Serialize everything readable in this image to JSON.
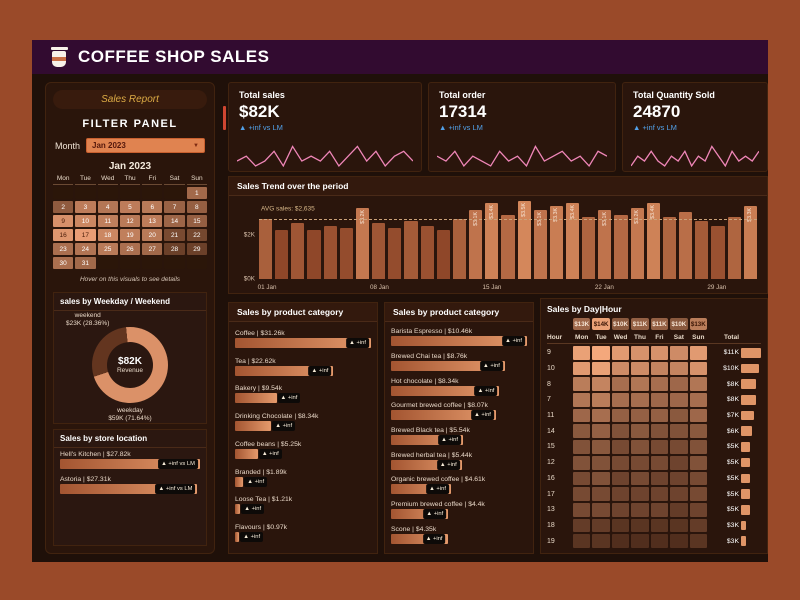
{
  "header": {
    "title": "COFFEE SHOP SALES",
    "icon": "coffee-cup-icon",
    "bg": "#320b30"
  },
  "colors": {
    "frame": "#9a4a29",
    "dashboard_bg": "#1f1009",
    "panel_bg": "#2a150c",
    "accent": "#e09567",
    "delta_blue": "#52a0e8",
    "gold": "#dcab45",
    "sparkline_pink": "#ef86b8"
  },
  "sidebar": {
    "report_label": "Sales Report",
    "filter_title": "FILTER PANEL",
    "month_label": "Month",
    "month_value": "Jan 2023",
    "hint": "Hover on this visuals to see details",
    "calendar": {
      "title": "Jan 2023",
      "day_headers": [
        "Mon",
        "Tue",
        "Wed",
        "Thu",
        "Fri",
        "Sat",
        "Sun"
      ],
      "heat_low": "#40200f",
      "heat_high": "#f2a47a",
      "cells": [
        {
          "d": "",
          "v": 0
        },
        {
          "d": "",
          "v": 0
        },
        {
          "d": "",
          "v": 0
        },
        {
          "d": "",
          "v": 0
        },
        {
          "d": "",
          "v": 0
        },
        {
          "d": "",
          "v": 0
        },
        {
          "d": "1",
          "v": 0.55
        },
        {
          "d": "2",
          "v": 0.45
        },
        {
          "d": "3",
          "v": 0.7
        },
        {
          "d": "4",
          "v": 0.65
        },
        {
          "d": "5",
          "v": 0.7
        },
        {
          "d": "6",
          "v": 0.68
        },
        {
          "d": "7",
          "v": 0.5
        },
        {
          "d": "8",
          "v": 0.48
        },
        {
          "d": "9",
          "v": 0.85
        },
        {
          "d": "10",
          "v": 0.78
        },
        {
          "d": "11",
          "v": 0.72
        },
        {
          "d": "12",
          "v": 0.68
        },
        {
          "d": "13",
          "v": 0.7
        },
        {
          "d": "14",
          "v": 0.52
        },
        {
          "d": "15",
          "v": 0.48
        },
        {
          "d": "16",
          "v": 0.9
        },
        {
          "d": "17",
          "v": 0.95
        },
        {
          "d": "18",
          "v": 0.78
        },
        {
          "d": "19",
          "v": 0.72
        },
        {
          "d": "20",
          "v": 0.68
        },
        {
          "d": "21",
          "v": 0.32
        },
        {
          "d": "22",
          "v": 0.3
        },
        {
          "d": "23",
          "v": 0.6
        },
        {
          "d": "24",
          "v": 0.64
        },
        {
          "d": "25",
          "v": 0.68
        },
        {
          "d": "26",
          "v": 0.6
        },
        {
          "d": "27",
          "v": 0.55
        },
        {
          "d": "28",
          "v": 0.24
        },
        {
          "d": "29",
          "v": 0.24
        },
        {
          "d": "30",
          "v": 0.6
        },
        {
          "d": "31",
          "v": 0.55
        },
        {
          "d": "",
          "v": 0
        },
        {
          "d": "",
          "v": 0
        },
        {
          "d": "",
          "v": 0
        },
        {
          "d": "",
          "v": 0
        },
        {
          "d": "",
          "v": 0
        }
      ]
    }
  },
  "kpis": [
    {
      "title": "Total sales",
      "value": "$82K",
      "delta": "▲ +inf vs LM"
    },
    {
      "title": "Total order",
      "value": "17314",
      "delta": "▲ +inf vs LM"
    },
    {
      "title": "Total Quantity Sold",
      "value": "24870",
      "delta": "▲ +inf vs LM"
    }
  ],
  "chart_data": [
    {
      "id": "kpi-sparklines",
      "type": "line",
      "color": "#ef86b8",
      "series": [
        {
          "name": "Total sales",
          "values": [
            4,
            5,
            3,
            4,
            6,
            3,
            7,
            4,
            5,
            4,
            6,
            3,
            5,
            7,
            4,
            6,
            3,
            5,
            6,
            4
          ]
        },
        {
          "name": "Total order",
          "values": [
            5,
            4,
            6,
            3,
            5,
            4,
            3,
            6,
            4,
            5,
            3,
            7,
            4,
            5,
            6,
            4,
            5,
            3,
            6,
            5
          ]
        },
        {
          "name": "Total Quantity Sold",
          "values": [
            3,
            5,
            4,
            6,
            4,
            3,
            5,
            4,
            6,
            3,
            5,
            4,
            7,
            5,
            3,
            6,
            4,
            5,
            4,
            6
          ]
        }
      ]
    },
    {
      "id": "sales-trend",
      "type": "bar",
      "title": "Sales Trend over the period",
      "avg_label": "AVG sales: $2,635",
      "avg_value": 2.635,
      "ymax": 3.6,
      "unit": "$K",
      "yticks": [
        {
          "label": "$2K",
          "value": 2
        },
        {
          "label": "$0K",
          "value": 0
        }
      ],
      "xticks": [
        {
          "label": "01 Jan",
          "index": 0
        },
        {
          "label": "08 Jan",
          "index": 7
        },
        {
          "label": "15 Jan",
          "index": 14
        },
        {
          "label": "22 Jan",
          "index": 21
        },
        {
          "label": "29 Jan",
          "index": 28
        }
      ],
      "bars": [
        {
          "v": 2.7
        },
        {
          "v": 2.2
        },
        {
          "v": 2.5
        },
        {
          "v": 2.2
        },
        {
          "v": 2.4
        },
        {
          "v": 2.3
        },
        {
          "v": 3.2,
          "label": "$3.2K"
        },
        {
          "v": 2.5
        },
        {
          "v": 2.3
        },
        {
          "v": 2.6
        },
        {
          "v": 2.4
        },
        {
          "v": 2.2
        },
        {
          "v": 2.7
        },
        {
          "v": 3.1,
          "label": "$3.1K"
        },
        {
          "v": 3.4,
          "label": "$3.4K"
        },
        {
          "v": 2.9
        },
        {
          "v": 3.5,
          "label": "$3.5K"
        },
        {
          "v": 3.1,
          "label": "$3.1K"
        },
        {
          "v": 3.3,
          "label": "$3.3K"
        },
        {
          "v": 3.4,
          "label": "$3.4K"
        },
        {
          "v": 2.8
        },
        {
          "v": 3.1,
          "label": "$3.1K"
        },
        {
          "v": 2.9
        },
        {
          "v": 3.2,
          "label": "$3.2K"
        },
        {
          "v": 3.4,
          "label": "$3.4K"
        },
        {
          "v": 2.8
        },
        {
          "v": 3.0
        },
        {
          "v": 2.6
        },
        {
          "v": 2.4
        },
        {
          "v": 2.8
        },
        {
          "v": 3.3,
          "label": "$3.3K"
        }
      ]
    },
    {
      "id": "category",
      "type": "bar",
      "title": "Sales by product category",
      "max": 31.26,
      "items": [
        {
          "label": "Coffee | $31.26k",
          "value": 31.26,
          "badge": "▲ +inf"
        },
        {
          "label": "Tea | $22.62k",
          "value": 22.62,
          "badge": "▲ +inf"
        },
        {
          "label": "Bakery | $9.54k",
          "value": 9.54,
          "badge": "▲ +inf"
        },
        {
          "label": "Drinking Chocolate | $8.34k",
          "value": 8.34,
          "badge": "▲ +inf"
        },
        {
          "label": "Coffee beans | $5.25k",
          "value": 5.25,
          "badge": "▲ +inf"
        },
        {
          "label": "Branded | $1.89k",
          "value": 1.89,
          "badge": "▲ +inf"
        },
        {
          "label": "Loose Tea | $1.21k",
          "value": 1.21,
          "badge": "▲ +inf"
        },
        {
          "label": "Flavours | $0.97k",
          "value": 0.97,
          "badge": "▲ +inf"
        }
      ]
    },
    {
      "id": "product-type",
      "type": "bar",
      "title": "Sales by product category",
      "max": 10.46,
      "items": [
        {
          "label": "Barista Espresso | $10.46k",
          "value": 10.46,
          "badge": "▲ +inf"
        },
        {
          "label": "Brewed Chai tea | $8.76k",
          "value": 8.76,
          "badge": "▲ +inf"
        },
        {
          "label": "Hot chocolate | $8.34k",
          "value": 8.34,
          "badge": "▲ +inf"
        },
        {
          "label": "Gourmet brewed coffee | $8.07k",
          "value": 8.07,
          "badge": "▲ +inf"
        },
        {
          "label": "Brewed Black tea | $5.54k",
          "value": 5.54,
          "badge": "▲ +inf"
        },
        {
          "label": "Brewed herbal tea | $5.44k",
          "value": 5.44,
          "badge": "▲ +inf"
        },
        {
          "label": "Organic brewed coffee | $4.61k",
          "value": 4.61,
          "badge": "▲ +inf"
        },
        {
          "label": "Premium brewed coffee | $4.4k",
          "value": 4.4,
          "badge": "▲ +inf"
        },
        {
          "label": "Scone | $4.35k",
          "value": 4.35,
          "badge": "▲ +inf"
        }
      ]
    },
    {
      "id": "weekday-weekend",
      "type": "donut",
      "title": "sales by Weekday / Weekend",
      "slices": [
        {
          "name": "weekend",
          "label": "$23K (28.36%)",
          "pct": 28.36,
          "color": "#63351f"
        },
        {
          "name": "weekday",
          "label": "$59K (71.64%)",
          "pct": 71.64,
          "color": "#db9168"
        }
      ],
      "center_value": "$82K",
      "center_label": "Revenue"
    },
    {
      "id": "store-location",
      "type": "bar",
      "title": "Sales by store location",
      "max": 27.82,
      "items": [
        {
          "label": "Hell's Kitchen | $27.82k",
          "value": 27.82,
          "badge": "▲ +inf vs LM"
        },
        {
          "label": "Astoria | $27.31k",
          "value": 27.31,
          "badge": "▲ +inf vs LM"
        }
      ]
    },
    {
      "id": "day-hour",
      "type": "heatmap",
      "title": "Sales by Day|Hour",
      "heat_low": "#34180c",
      "heat_high": "#f4a87c",
      "max_total": 11,
      "columns": [
        "Hour",
        "Mon",
        "Tue",
        "Wed",
        "Thu",
        "Fri",
        "Sat",
        "Sun",
        "Total"
      ],
      "col_totals": [
        {
          "label": "$13K",
          "v": 0.55
        },
        {
          "label": "$14K",
          "v": 0.95
        },
        {
          "label": "$10K",
          "v": 0.45
        },
        {
          "label": "$11K",
          "v": 0.5
        },
        {
          "label": "$11K",
          "v": 0.5
        },
        {
          "label": "$10K",
          "v": 0.45
        },
        {
          "label": "$13K",
          "v": 0.7
        }
      ],
      "rows": [
        {
          "hour": "9",
          "total": "$11K",
          "tv": 11,
          "cells": [
            0.95,
            1.0,
            0.9,
            0.85,
            0.85,
            0.8,
            0.9
          ]
        },
        {
          "hour": "10",
          "total": "$10K",
          "tv": 10,
          "cells": [
            0.9,
            0.95,
            0.8,
            0.8,
            0.75,
            0.75,
            0.85
          ]
        },
        {
          "hour": "8",
          "total": "$8K",
          "tv": 8,
          "cells": [
            0.7,
            0.75,
            0.6,
            0.65,
            0.6,
            0.55,
            0.65
          ]
        },
        {
          "hour": "7",
          "total": "$8K",
          "tv": 8,
          "cells": [
            0.65,
            0.7,
            0.6,
            0.6,
            0.55,
            0.55,
            0.6
          ]
        },
        {
          "hour": "11",
          "total": "$7K",
          "tv": 7,
          "cells": [
            0.55,
            0.6,
            0.5,
            0.5,
            0.5,
            0.45,
            0.55
          ]
        },
        {
          "hour": "14",
          "total": "$6K",
          "tv": 6,
          "cells": [
            0.45,
            0.5,
            0.4,
            0.45,
            0.4,
            0.4,
            0.45
          ]
        },
        {
          "hour": "15",
          "total": "$5K",
          "tv": 5,
          "cells": [
            0.4,
            0.45,
            0.35,
            0.4,
            0.35,
            0.35,
            0.4
          ]
        },
        {
          "hour": "12",
          "total": "$5K",
          "tv": 5,
          "cells": [
            0.4,
            0.4,
            0.35,
            0.35,
            0.35,
            0.3,
            0.4
          ]
        },
        {
          "hour": "16",
          "total": "$5K",
          "tv": 5,
          "cells": [
            0.35,
            0.4,
            0.3,
            0.35,
            0.3,
            0.3,
            0.35
          ]
        },
        {
          "hour": "17",
          "total": "$5K",
          "tv": 5,
          "cells": [
            0.35,
            0.35,
            0.3,
            0.3,
            0.3,
            0.3,
            0.35
          ]
        },
        {
          "hour": "13",
          "total": "$5K",
          "tv": 5,
          "cells": [
            0.35,
            0.35,
            0.3,
            0.3,
            0.3,
            0.25,
            0.3
          ]
        },
        {
          "hour": "18",
          "total": "$3K",
          "tv": 3,
          "cells": [
            0.25,
            0.25,
            0.2,
            0.2,
            0.2,
            0.2,
            0.25
          ]
        },
        {
          "hour": "19",
          "total": "$3K",
          "tv": 3,
          "cells": [
            0.2,
            0.2,
            0.15,
            0.15,
            0.15,
            0.15,
            0.2
          ]
        }
      ]
    }
  ]
}
